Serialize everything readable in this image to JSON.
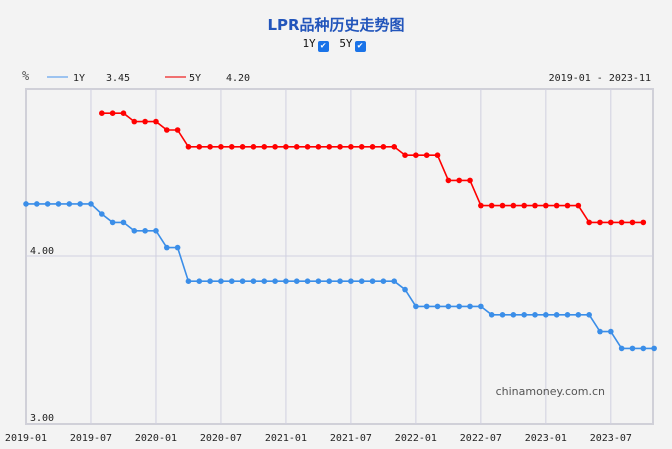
{
  "title": "LPR品种历史走势图",
  "toggles": [
    {
      "label": "1Y",
      "checked": true
    },
    {
      "label": "5Y",
      "checked": true
    }
  ],
  "legend": {
    "unit": "%",
    "items": [
      {
        "name": "1Y",
        "value": "3.45"
      },
      {
        "name": "5Y",
        "value": "4.20"
      }
    ],
    "range": "2019-01 - 2023-11"
  },
  "watermark": "chinamoney.com.cn",
  "colors": {
    "1Y": "#3b8ee8",
    "5Y": "#ff0000",
    "title": "#2255bb"
  },
  "chart_data": {
    "type": "line",
    "title": "LPR品种历史走势图",
    "ylabel": "%",
    "ylim": [
      3.0,
      5.0
    ],
    "yticks": [
      "4.00",
      "3.00"
    ],
    "xticks": [
      "2019-01",
      "2019-07",
      "2020-01",
      "2020-07",
      "2021-01",
      "2021-07",
      "2022-01",
      "2022-07",
      "2023-01",
      "2023-07"
    ],
    "xrange": [
      "2019-01",
      "2023-11"
    ],
    "grid": true,
    "legend": "top-left",
    "series": [
      {
        "name": "1Y",
        "start": "2019-01",
        "values": [
          4.31,
          4.31,
          4.31,
          4.31,
          4.31,
          4.31,
          4.31,
          4.25,
          4.2,
          4.2,
          4.15,
          4.15,
          4.15,
          4.05,
          4.05,
          3.85,
          3.85,
          3.85,
          3.85,
          3.85,
          3.85,
          3.85,
          3.85,
          3.85,
          3.85,
          3.85,
          3.85,
          3.85,
          3.85,
          3.85,
          3.85,
          3.85,
          3.85,
          3.85,
          3.85,
          3.8,
          3.7,
          3.7,
          3.7,
          3.7,
          3.7,
          3.7,
          3.7,
          3.65,
          3.65,
          3.65,
          3.65,
          3.65,
          3.65,
          3.65,
          3.65,
          3.65,
          3.65,
          3.55,
          3.55,
          3.45,
          3.45,
          3.45,
          3.45
        ]
      },
      {
        "name": "5Y",
        "start": "2019-08",
        "values": [
          4.85,
          4.85,
          4.85,
          4.8,
          4.8,
          4.8,
          4.75,
          4.75,
          4.65,
          4.65,
          4.65,
          4.65,
          4.65,
          4.65,
          4.65,
          4.65,
          4.65,
          4.65,
          4.65,
          4.65,
          4.65,
          4.65,
          4.65,
          4.65,
          4.65,
          4.65,
          4.65,
          4.65,
          4.6,
          4.6,
          4.6,
          4.6,
          4.45,
          4.45,
          4.45,
          4.3,
          4.3,
          4.3,
          4.3,
          4.3,
          4.3,
          4.3,
          4.3,
          4.3,
          4.3,
          4.2,
          4.2,
          4.2,
          4.2,
          4.2,
          4.2
        ]
      }
    ]
  }
}
